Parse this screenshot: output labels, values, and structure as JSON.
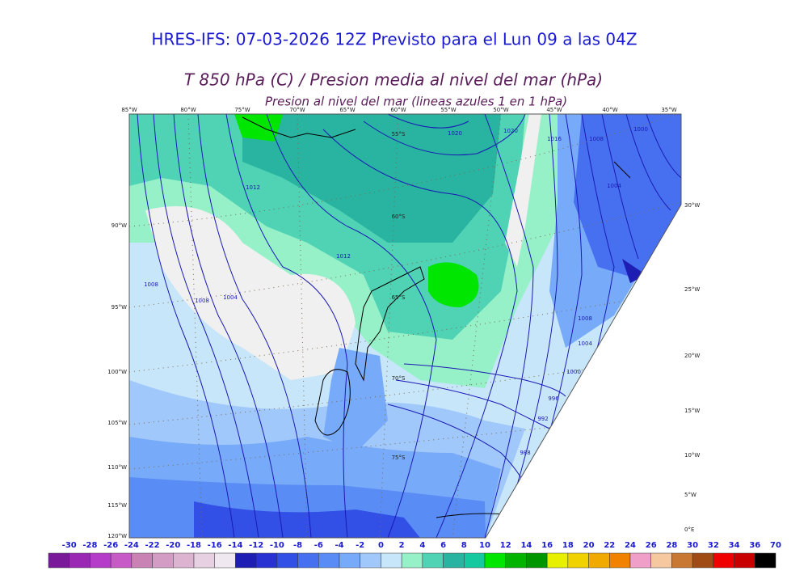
{
  "header": {
    "title": "HRES-IFS: 07-03-2026 12Z Previsto para el Lun 09 a las 04Z",
    "subtitle": "T 850 hPa (C) / Presion media al nivel del mar (hPa)",
    "caption": "Presion al nivel del mar (lineas azules 1 en 1 hPa)"
  },
  "map": {
    "top_labels": [
      "85°W",
      "80°W",
      "75°W",
      "70°W",
      "65°W",
      "60°W",
      "55°W",
      "50°W",
      "45°W",
      "40°W",
      "35°W"
    ],
    "left_labels": [
      "90°W",
      "95°W",
      "100°W",
      "105°W",
      "110°W",
      "115°W",
      "120°W"
    ],
    "right_labels": [
      "30°W",
      "25°W",
      "20°W",
      "15°W",
      "10°W",
      "5°W",
      "0°E"
    ],
    "latitude_labels": [
      "55°S",
      "60°S",
      "65°S",
      "70°S",
      "75°S"
    ],
    "isobar_labels": [
      "1020",
      "1020",
      "1016",
      "1012",
      "1008",
      "1008",
      "1012",
      "1004",
      "1008",
      "1004",
      "1000",
      "996",
      "992",
      "988",
      "1008",
      "1004",
      "1000"
    ]
  },
  "colorbar": {
    "labels": [
      "-30",
      "-28",
      "-26",
      "-24",
      "-22",
      "-20",
      "-18",
      "-16",
      "-14",
      "-12",
      "-10",
      "-8",
      "-6",
      "-4",
      "-2",
      "0",
      "2",
      "4",
      "6",
      "8",
      "10",
      "12",
      "14",
      "16",
      "18",
      "20",
      "22",
      "24",
      "26",
      "28",
      "30",
      "32",
      "34",
      "36",
      "70"
    ],
    "colors": [
      "#7a1a9a",
      "#9a28b4",
      "#b43cc8",
      "#c85ac8",
      "#c882b4",
      "#d29cc4",
      "#dcb4d2",
      "#e6d0e2",
      "#f0e8f0",
      "#1e1eb4",
      "#2832d2",
      "#3250e6",
      "#4670f0",
      "#5a8cf5",
      "#78aafa",
      "#a0c8fa",
      "#c8e6fa",
      "#96f0c8",
      "#50d2b4",
      "#28b4a0",
      "#14c8a0",
      "#00e600",
      "#00b400",
      "#009600",
      "#e6f000",
      "#f0d200",
      "#f0aa00",
      "#f08200",
      "#f0a0c8",
      "#f5c8a0",
      "#c87832",
      "#a04a14",
      "#f00000",
      "#c80000",
      "#000000"
    ]
  }
}
